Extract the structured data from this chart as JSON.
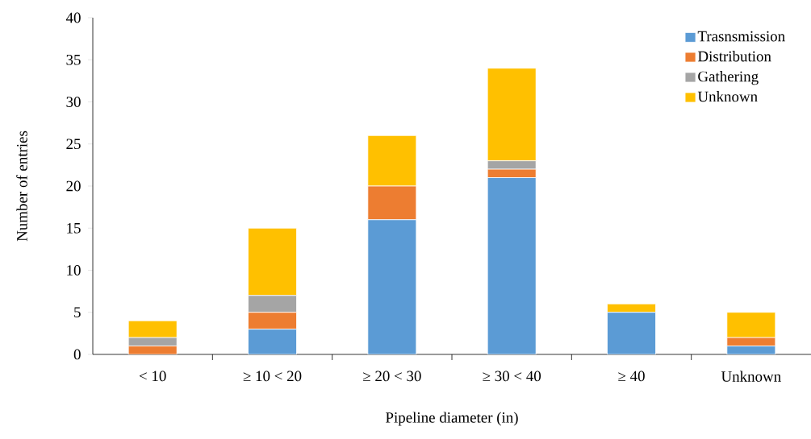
{
  "chart_data": {
    "type": "bar",
    "stacked": true,
    "xlabel": "Pipeline diameter (in)",
    "ylabel": "Number of entries",
    "categories": [
      "< 10",
      "≥ 10 < 20",
      "≥ 20 < 30",
      "≥ 30 < 40",
      "≥ 40",
      "Unknown"
    ],
    "series": [
      {
        "name": "Trasnsmission",
        "color": "#5b9bd5",
        "values": [
          0,
          3,
          16,
          21,
          5,
          1
        ]
      },
      {
        "name": "Distribution",
        "color": "#ed7d31",
        "values": [
          1,
          2,
          4,
          1,
          0,
          1
        ]
      },
      {
        "name": "Gathering",
        "color": "#a5a5a5",
        "values": [
          1,
          2,
          0,
          1,
          0,
          0
        ]
      },
      {
        "name": "Unknown",
        "color": "#ffc000",
        "values": [
          2,
          8,
          6,
          11,
          1,
          3
        ]
      }
    ],
    "ylim": [
      0,
      40
    ],
    "yticks": [
      0,
      5,
      10,
      15,
      20,
      25,
      30,
      35,
      40
    ],
    "legend": "top right",
    "grid": false
  }
}
